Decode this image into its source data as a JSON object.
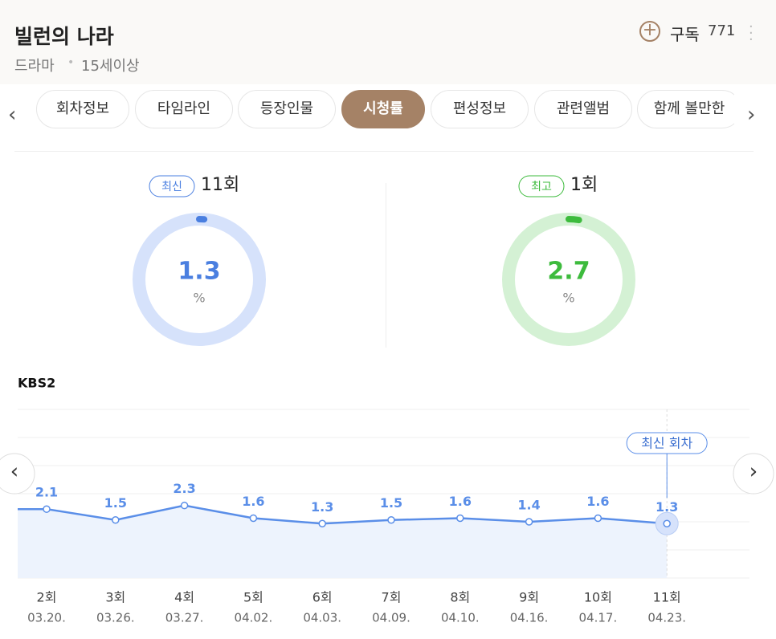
{
  "header": {
    "title": "빌런의 나라",
    "genre": "드라마",
    "rating": "15세이상",
    "subscribe": "구독",
    "subscribers": "771"
  },
  "tabs": [
    {
      "label": "회차정보"
    },
    {
      "label": "타임라인"
    },
    {
      "label": "등장인물"
    },
    {
      "label": "시청률",
      "active": true
    },
    {
      "label": "편성정보"
    },
    {
      "label": "관련앨범"
    },
    {
      "label": "함께 볼만한"
    }
  ],
  "summary": [
    {
      "badge": "최신",
      "episode": "11회",
      "value": 1.3,
      "unit": "%",
      "color": "#4a7fe0",
      "track": "#d6e2fb"
    },
    {
      "badge": "최고",
      "episode": "1회",
      "value": 2.7,
      "unit": "%",
      "color": "#3dbb3d",
      "track": "#d4f1d4"
    }
  ],
  "chart_data": {
    "type": "line",
    "title": "KBS2",
    "categories": [
      "2회",
      "3회",
      "4회",
      "5회",
      "6회",
      "7회",
      "8회",
      "9회",
      "10회",
      "11회"
    ],
    "dates": [
      "03.20.",
      "03.26.",
      "03.27.",
      "04.02.",
      "04.03.",
      "04.09.",
      "04.10.",
      "04.16.",
      "04.17.",
      "04.23."
    ],
    "series": [
      {
        "name": "시청률",
        "color": "#5a8ee8",
        "values": [
          2.1,
          1.5,
          2.3,
          1.6,
          1.3,
          1.5,
          1.6,
          1.4,
          1.6,
          1.3
        ]
      }
    ],
    "ylim": [
      -1.7,
      7.6
    ],
    "annotation": "최신 회차"
  }
}
